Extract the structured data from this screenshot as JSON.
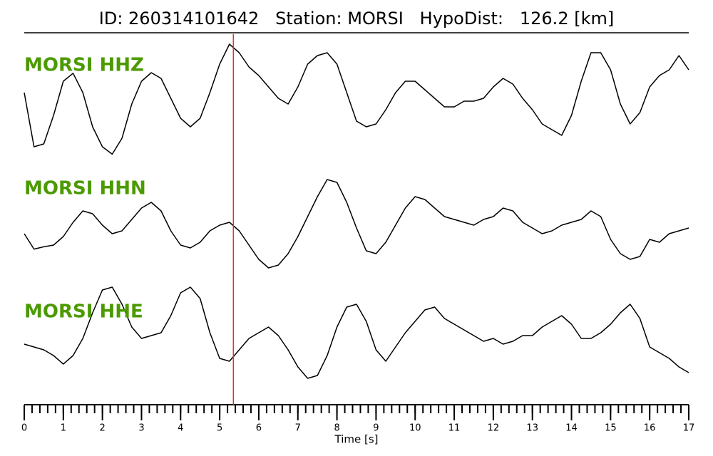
{
  "chart_data": {
    "type": "line",
    "title": "ID: 260314101642   Station: MORSI   HypoDist:   126.2 [km]",
    "xlabel": "Time [s]",
    "xlim": [
      0,
      17
    ],
    "xticks": [
      0,
      1,
      2,
      3,
      4,
      5,
      6,
      7,
      8,
      9,
      10,
      11,
      12,
      13,
      14,
      15,
      16,
      17
    ],
    "minor_tick_interval": 0.2,
    "ylim": [
      -1,
      1
    ],
    "pick_time": 5.35,
    "pick_color": "#e8302a",
    "label_color": "#4c9a00",
    "x": [
      0,
      0.25,
      0.5,
      0.75,
      1,
      1.25,
      1.5,
      1.75,
      2,
      2.25,
      2.5,
      2.75,
      3,
      3.25,
      3.5,
      3.75,
      4,
      4.25,
      4.5,
      4.75,
      5,
      5.25,
      5.5,
      5.75,
      6,
      6.25,
      6.5,
      6.75,
      7,
      7.25,
      7.5,
      7.75,
      8,
      8.25,
      8.5,
      8.75,
      9,
      9.25,
      9.5,
      9.75,
      10,
      10.25,
      10.5,
      10.75,
      11,
      11.25,
      11.5,
      11.75,
      12,
      12.25,
      12.5,
      12.75,
      13,
      13.25,
      13.5,
      13.75,
      14,
      14.25,
      14.5,
      14.75,
      15,
      15.25,
      15.5,
      15.75,
      16,
      16.25,
      16.5,
      16.75,
      17
    ],
    "series": [
      {
        "name": "MORSI HHZ",
        "color": "#000000",
        "values": [
          0.1,
          -0.85,
          -0.8,
          -0.3,
          0.3,
          0.44,
          0.1,
          -0.5,
          -0.85,
          -0.98,
          -0.7,
          -0.1,
          0.3,
          0.45,
          0.35,
          0,
          -0.35,
          -0.5,
          -0.35,
          0.1,
          0.6,
          0.95,
          0.8,
          0.55,
          0.4,
          0.2,
          0,
          -0.1,
          0.2,
          0.6,
          0.75,
          0.8,
          0.6,
          0.1,
          -0.4,
          -0.5,
          -0.45,
          -0.2,
          0.1,
          0.3,
          0.3,
          0.15,
          0,
          -0.15,
          -0.15,
          -0.05,
          -0.05,
          0,
          0.2,
          0.35,
          0.25,
          0,
          -0.2,
          -0.45,
          -0.55,
          -0.65,
          -0.3,
          0.3,
          0.8,
          0.8,
          0.5,
          -0.1,
          -0.45,
          -0.25,
          0.2,
          0.4,
          0.5,
          0.75,
          0.5
        ]
      },
      {
        "name": "MORSI HHN",
        "color": "#000000",
        "values": [
          -0.1,
          -0.37,
          -0.33,
          -0.3,
          -0.15,
          0.1,
          0.3,
          0.25,
          0.05,
          -0.1,
          -0.05,
          0.15,
          0.35,
          0.45,
          0.3,
          -0.05,
          -0.3,
          -0.35,
          -0.25,
          -0.05,
          0.05,
          0.1,
          -0.05,
          -0.3,
          -0.55,
          -0.7,
          -0.65,
          -0.45,
          -0.15,
          0.2,
          0.55,
          0.85,
          0.8,
          0.45,
          0,
          -0.4,
          -0.45,
          -0.25,
          0.05,
          0.35,
          0.55,
          0.5,
          0.35,
          0.2,
          0.15,
          0.1,
          0.05,
          0.15,
          0.2,
          0.35,
          0.3,
          0.1,
          0,
          -0.1,
          -0.05,
          0.05,
          0.1,
          0.15,
          0.3,
          0.2,
          -0.2,
          -0.45,
          -0.55,
          -0.5,
          -0.2,
          -0.25,
          -0.1,
          -0.05,
          0
        ]
      },
      {
        "name": "MORSI HHE",
        "color": "#000000",
        "values": [
          -0.1,
          -0.15,
          -0.2,
          -0.3,
          -0.45,
          -0.3,
          0,
          0.45,
          0.85,
          0.9,
          0.6,
          0.2,
          0,
          0.05,
          0.1,
          0.4,
          0.8,
          0.9,
          0.7,
          0.1,
          -0.35,
          -0.4,
          -0.2,
          0,
          0.1,
          0.2,
          0.05,
          -0.2,
          -0.5,
          -0.7,
          -0.65,
          -0.3,
          0.2,
          0.55,
          0.6,
          0.3,
          -0.2,
          -0.4,
          -0.15,
          0.1,
          0.3,
          0.5,
          0.55,
          0.35,
          0.25,
          0.15,
          0.05,
          -0.05,
          0,
          -0.1,
          -0.05,
          0.05,
          0.05,
          0.2,
          0.3,
          0.4,
          0.25,
          0,
          0,
          0.1,
          0.25,
          0.45,
          0.6,
          0.35,
          -0.15,
          -0.25,
          -0.35,
          -0.5,
          -0.6
        ]
      }
    ]
  }
}
